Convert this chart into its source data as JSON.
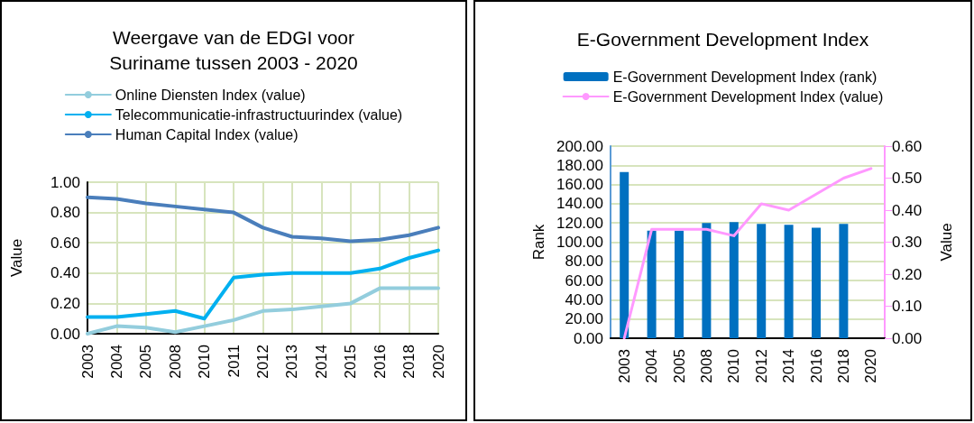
{
  "chart_data": [
    {
      "type": "line",
      "title": "Weergave van de EDGI voor\nSuriname tussen 2003 - 2020",
      "ylabel": "Value",
      "categories": [
        "2003",
        "2004",
        "2005",
        "2008",
        "2010",
        "2011",
        "2012",
        "2013",
        "2014",
        "2015",
        "2016",
        "2018",
        "2020"
      ],
      "series": [
        {
          "name": "Online Diensten Index (value)",
          "color": "#93cddd",
          "values": [
            0,
            0.05,
            0.04,
            0.01,
            0.05,
            0.09,
            0.15,
            0.16,
            0.18,
            0.2,
            0.3,
            0.3,
            0.3
          ]
        },
        {
          "name": "Telecommunicatie-infrastructuurindex (value)",
          "color": "#00b0f0",
          "values": [
            0.11,
            0.11,
            0.13,
            0.15,
            0.1,
            0.37,
            0.39,
            0.4,
            0.4,
            0.4,
            0.43,
            0.5,
            0.55
          ]
        },
        {
          "name": "Human Capital Index (value)",
          "color": "#4a7ebb",
          "values": [
            0.9,
            0.89,
            0.86,
            0.84,
            0.82,
            0.8,
            0.7,
            0.64,
            0.63,
            0.61,
            0.62,
            0.65,
            0.7
          ]
        }
      ],
      "ylim": [
        0,
        1
      ],
      "yticks": [
        {
          "value": 0,
          "label": "0.00"
        },
        {
          "value": 0.2,
          "label": "0.20"
        },
        {
          "value": 0.4,
          "label": "0.40"
        },
        {
          "value": 0.6,
          "label": "0.60"
        },
        {
          "value": 0.8,
          "label": "0.80"
        },
        {
          "value": 1,
          "label": "1.00"
        }
      ],
      "grid": true,
      "legend": "top",
      "marker": "none"
    },
    {
      "type": "bar",
      "title": "E-Government Development Index",
      "ylabel": "Rank",
      "y2label": "Value",
      "categories": [
        "2003",
        "2004",
        "2005",
        "2008",
        "2010",
        "2012",
        "2014",
        "2016",
        "2018",
        "2020"
      ],
      "series": [
        {
          "name": "E-Government Development Index (rank)",
          "color": "#0070c0",
          "values": [
            173,
            112,
            112,
            120,
            121,
            119,
            118,
            115,
            119,
            null
          ]
        },
        {
          "name": "E-Government Development Index (value)",
          "type": "line",
          "axis": "y2",
          "color": "#ff99ff",
          "values": [
            0,
            0.34,
            0.34,
            0.34,
            0.32,
            0.42,
            0.4,
            0.45,
            0.5,
            0.53
          ]
        }
      ],
      "ylim": [
        0,
        200
      ],
      "yticks": [
        {
          "value": 0,
          "label": "0.00"
        },
        {
          "value": 20,
          "label": "20.00"
        },
        {
          "value": 40,
          "label": "40.00"
        },
        {
          "value": 60,
          "label": "60.00"
        },
        {
          "value": 80,
          "label": "80.00"
        },
        {
          "value": 100,
          "label": "100.00"
        },
        {
          "value": 120,
          "label": "120.00"
        },
        {
          "value": 140,
          "label": "140.00"
        },
        {
          "value": 160,
          "label": "160.00"
        },
        {
          "value": 180,
          "label": "180.00"
        },
        {
          "value": 200,
          "label": "200.00"
        }
      ],
      "y2lim": [
        0,
        0.6
      ],
      "y2ticks": [
        {
          "value": 0,
          "label": "0.00"
        },
        {
          "value": 0.1,
          "label": "0.10"
        },
        {
          "value": 0.2,
          "label": "0.20"
        },
        {
          "value": 0.3,
          "label": "0.30"
        },
        {
          "value": 0.4,
          "label": "0.40"
        },
        {
          "value": 0.5,
          "label": "0.50"
        },
        {
          "value": 0.6,
          "label": "0.60"
        }
      ],
      "grid": "y",
      "legend": "top",
      "marker": "none"
    }
  ]
}
